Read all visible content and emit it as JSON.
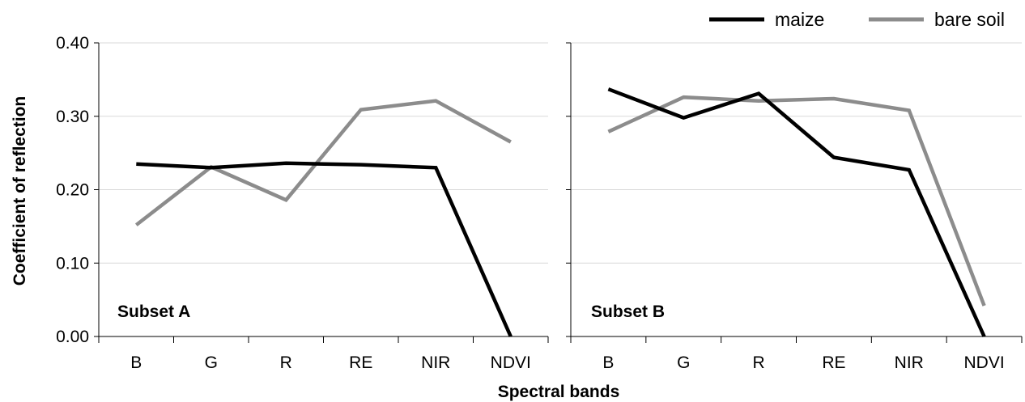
{
  "chart_data": {
    "type": "line",
    "xlabel": "Spectral bands",
    "ylabel": "Coefficient of reflection",
    "ylim": [
      0,
      0.4
    ],
    "yticks": [
      "0.00",
      "0.10",
      "0.20",
      "0.30",
      "0.40"
    ],
    "categories": [
      "B",
      "G",
      "R",
      "RE",
      "NIR",
      "NDVI"
    ],
    "grid": "horizontal",
    "legend_position": "top-right",
    "series_styles": [
      {
        "name": "maize",
        "color": "#000000"
      },
      {
        "name": "bare soil",
        "color": "#8c8c8c"
      }
    ],
    "panels": [
      {
        "label": "Subset A",
        "series": [
          {
            "name": "maize",
            "values": [
              0.235,
              0.23,
              0.236,
              0.234,
              0.23,
              0.0
            ]
          },
          {
            "name": "bare soil",
            "values": [
              0.152,
              0.231,
              0.186,
              0.309,
              0.321,
              0.265
            ]
          }
        ]
      },
      {
        "label": "Subset B",
        "series": [
          {
            "name": "maize",
            "values": [
              0.337,
              0.298,
              0.331,
              0.244,
              0.227,
              0.0
            ]
          },
          {
            "name": "bare soil",
            "values": [
              0.279,
              0.326,
              0.321,
              0.324,
              0.308,
              0.042
            ]
          }
        ]
      }
    ]
  }
}
